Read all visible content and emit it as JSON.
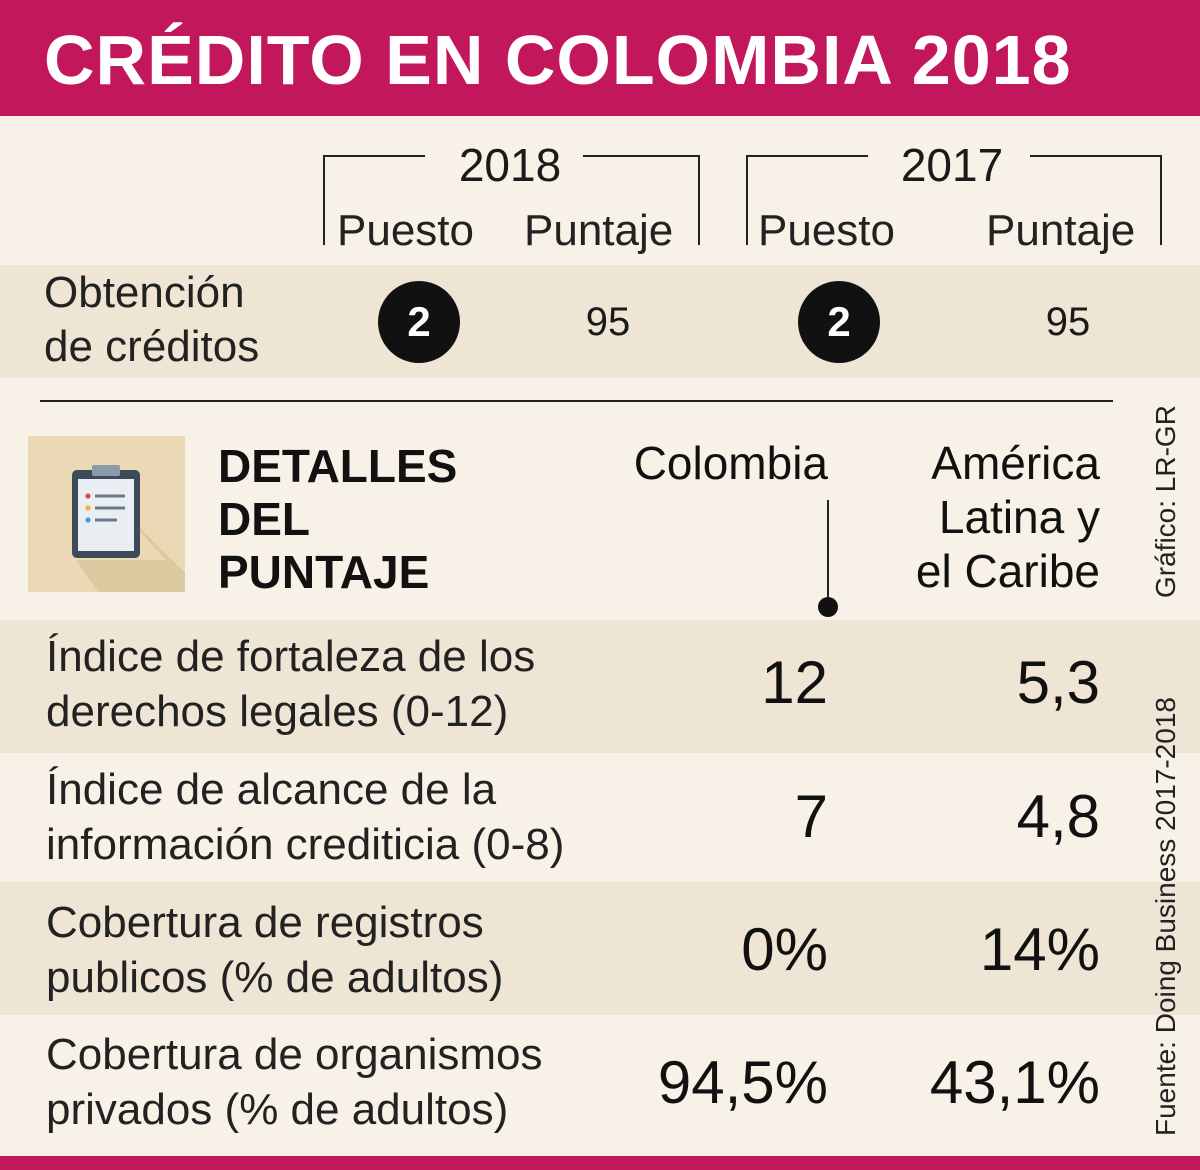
{
  "title": "CRÉDITO EN COLOMBIA 2018",
  "ranking": {
    "years": [
      {
        "year": "2018",
        "puesto_label": "Puesto",
        "puntaje_label": "Puntaje",
        "puesto": "2",
        "puntaje": "95"
      },
      {
        "year": "2017",
        "puesto_label": "Puesto",
        "puntaje_label": "Puntaje",
        "puesto": "2",
        "puntaje": "95"
      }
    ],
    "row_label_line1": "Obtención",
    "row_label_line2": "de créditos"
  },
  "details": {
    "title_lines": [
      "DETALLES",
      "DEL",
      "PUNTAJE"
    ],
    "col_colombia": "Colombia",
    "col_region_lines": [
      "América",
      "Latina y",
      "el Caribe"
    ],
    "icon": "clipboard-icon"
  },
  "chart_data": {
    "type": "table",
    "title": "CRÉDITO EN COLOMBIA 2018",
    "ranking": {
      "columns": [
        "2018 Puesto",
        "2018 Puntaje",
        "2017 Puesto",
        "2017 Puntaje"
      ],
      "rows": [
        {
          "label": "Obtención de créditos",
          "values": [
            2,
            95,
            2,
            95
          ]
        }
      ]
    },
    "details": {
      "columns": [
        "Colombia",
        "América Latina y el Caribe"
      ],
      "rows": [
        {
          "label_lines": [
            "Índice de fortaleza de los",
            "derechos legales (0-12)"
          ],
          "values": [
            "12",
            "5,3"
          ]
        },
        {
          "label_lines": [
            "Índice de alcance de la",
            "información crediticia (0-8)"
          ],
          "values": [
            "7",
            "4,8"
          ]
        },
        {
          "label_lines": [
            "Cobertura de registros",
            "publicos (% de adultos)"
          ],
          "values": [
            "0%",
            "14%"
          ]
        },
        {
          "label_lines": [
            "Cobertura de organismos",
            "privados (% de adultos)"
          ],
          "values": [
            "94,5%",
            "43,1%"
          ]
        }
      ]
    }
  },
  "credits": {
    "grafico": "Gráfico: LR-GR",
    "fuente": "Fuente: Doing Business 2017-2018"
  },
  "colors": {
    "accent": "#c2185b",
    "background": "#f7f1e7",
    "band": "#efe5d4",
    "icon_bg": "#ead9b4"
  }
}
